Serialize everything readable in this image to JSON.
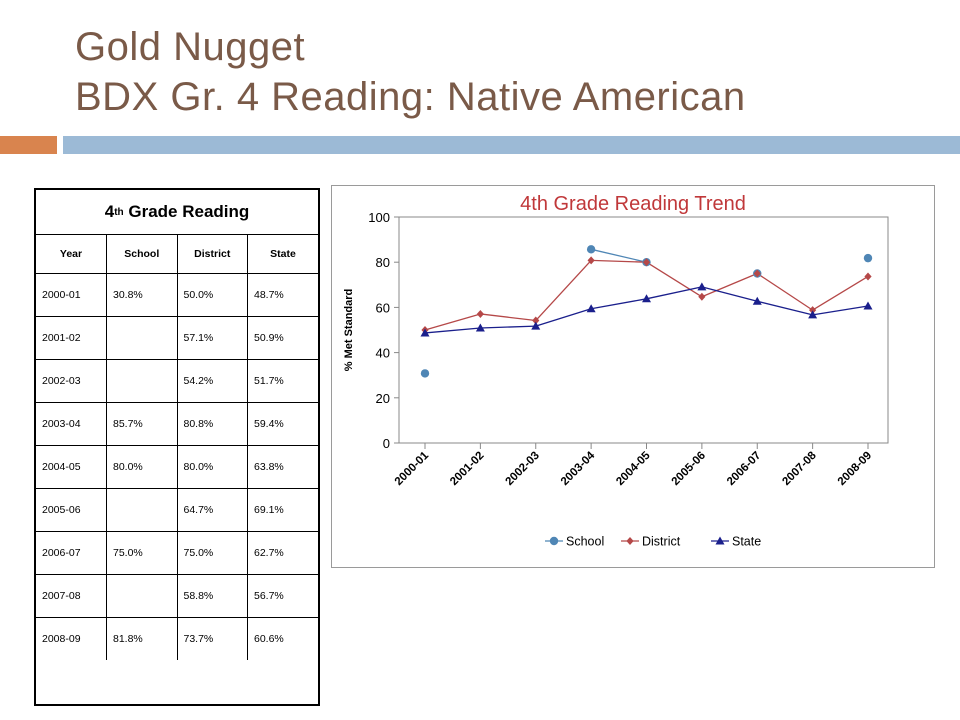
{
  "slide": {
    "title_line1": "Gold Nugget",
    "title_line2": "BDX Gr. 4 Reading:  Native American",
    "colors": {
      "title": "#7a5a48",
      "accent_orange": "#d9844e",
      "accent_blue": "#9cbad6"
    }
  },
  "table": {
    "heading_pre": "4",
    "heading_sup": "th",
    "heading_post": " Grade Reading",
    "columns": [
      "Year",
      "School",
      "District",
      "State"
    ],
    "rows": [
      [
        "2000-01",
        "30.8%",
        "50.0%",
        "48.7%"
      ],
      [
        "2001-02",
        "",
        "57.1%",
        "50.9%"
      ],
      [
        "2002-03",
        "",
        "54.2%",
        "51.7%"
      ],
      [
        "2003-04",
        "85.7%",
        "80.8%",
        "59.4%"
      ],
      [
        "2004-05",
        "80.0%",
        "80.0%",
        "63.8%"
      ],
      [
        "2005-06",
        "",
        "64.7%",
        "69.1%"
      ],
      [
        "2006-07",
        "75.0%",
        "75.0%",
        "62.7%"
      ],
      [
        "2007-08",
        "",
        "58.8%",
        "56.7%"
      ],
      [
        "2008-09",
        "81.8%",
        "73.7%",
        "60.6%"
      ]
    ]
  },
  "chart_data": {
    "type": "line",
    "title": "4th Grade Reading Trend",
    "xlabel": "",
    "ylabel": "% Met Standard",
    "ylim": [
      0,
      100
    ],
    "yticks": [
      0,
      20,
      40,
      60,
      80,
      100
    ],
    "categories": [
      "2000-01",
      "2001-02",
      "2002-03",
      "2003-04",
      "2004-05",
      "2005-06",
      "2006-07",
      "2007-08",
      "2008-09"
    ],
    "legend_position": "bottom",
    "grid": false,
    "series": [
      {
        "name": "School",
        "color": "#4f86b5",
        "marker": "circle",
        "values": [
          30.8,
          null,
          null,
          85.7,
          80.0,
          null,
          75.0,
          null,
          81.8
        ]
      },
      {
        "name": "District",
        "color": "#b54848",
        "marker": "diamond",
        "values": [
          50.0,
          57.1,
          54.2,
          80.8,
          80.0,
          64.7,
          75.0,
          58.8,
          73.7
        ]
      },
      {
        "name": "State",
        "color": "#1a1f8c",
        "marker": "triangle",
        "values": [
          48.7,
          50.9,
          51.7,
          59.4,
          63.8,
          69.1,
          62.7,
          56.7,
          60.6
        ]
      }
    ],
    "title_color": "#c0383a"
  }
}
